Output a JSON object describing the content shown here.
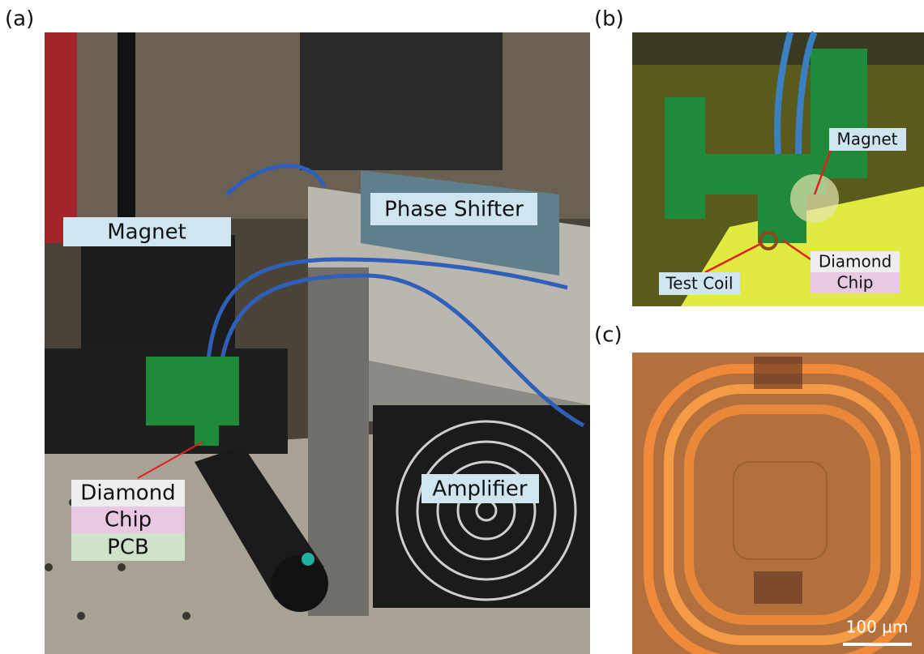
{
  "panels": [
    {
      "label": "(a)",
      "annotations": [
        "Magnet",
        "Phase Shifter",
        "Amplifier",
        "Diamond",
        "Chip",
        "PCB"
      ]
    },
    {
      "label": "(b)",
      "annotations": [
        "Magnet",
        "Test Coil",
        "Diamond",
        "Chip"
      ]
    },
    {
      "label": "(c)",
      "scale_bar": "100 µm"
    }
  ]
}
